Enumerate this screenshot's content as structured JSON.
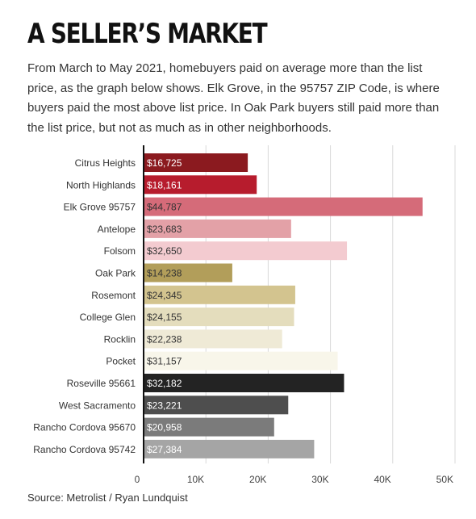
{
  "header": {
    "title": "A SELLER’S MARKET",
    "subtitle": "From March to May 2021, homebuyers paid on average more than the list price, as the graph below shows. Elk Grove, in the 95757 ZIP Code, is where buyers paid the most above list price. In Oak Park buyers still paid more than the list price, but not as much as in other neighborhoods."
  },
  "footer": {
    "source": "Source: Metrolist / Ryan Lundquist"
  },
  "chart_data": {
    "type": "bar",
    "orientation": "horizontal",
    "categories": [
      "Citrus Heights",
      "North Highlands",
      "Elk Grove 95757",
      "Antelope",
      "Folsom",
      "Oak Park",
      "Rosemont",
      "College Glen",
      "Rocklin",
      "Pocket",
      "Roseville 95661",
      "West Sacramento",
      "Rancho Cordova 95670",
      "Rancho Cordova 95742"
    ],
    "values": [
      16725,
      18161,
      44787,
      23683,
      32650,
      14238,
      24345,
      24155,
      22238,
      31157,
      32182,
      23221,
      20958,
      27384
    ],
    "value_labels": [
      "$16,725",
      "$18,161",
      "$44,787",
      "$23,683",
      "$32,650",
      "$14,238",
      "$24,345",
      "$24,155",
      "$22,238",
      "$31,157",
      "$32,182",
      "$23,221",
      "$20,958",
      "$27,384"
    ],
    "bar_colors": [
      "#8b1a1f",
      "#b71c2d",
      "#d56b79",
      "#e3a1a7",
      "#f3cbd0",
      "#b29e5a",
      "#d3c48f",
      "#e4ddbd",
      "#efead6",
      "#f8f6ea",
      "#232323",
      "#4e4e4e",
      "#7b7b7b",
      "#a5a5a5"
    ],
    "label_colors": [
      "#ffffff",
      "#ffffff",
      "#333333",
      "#333333",
      "#333333",
      "#333333",
      "#333333",
      "#333333",
      "#333333",
      "#333333",
      "#ffffff",
      "#ffffff",
      "#ffffff",
      "#ffffff"
    ],
    "xlim": [
      0,
      50000
    ],
    "xticks": [
      0,
      10000,
      20000,
      30000,
      40000,
      50000
    ],
    "xtick_labels": [
      "0",
      "10K",
      "20K",
      "30K",
      "40K",
      "50K"
    ],
    "grid": true,
    "xlabel": "",
    "ylabel": ""
  }
}
